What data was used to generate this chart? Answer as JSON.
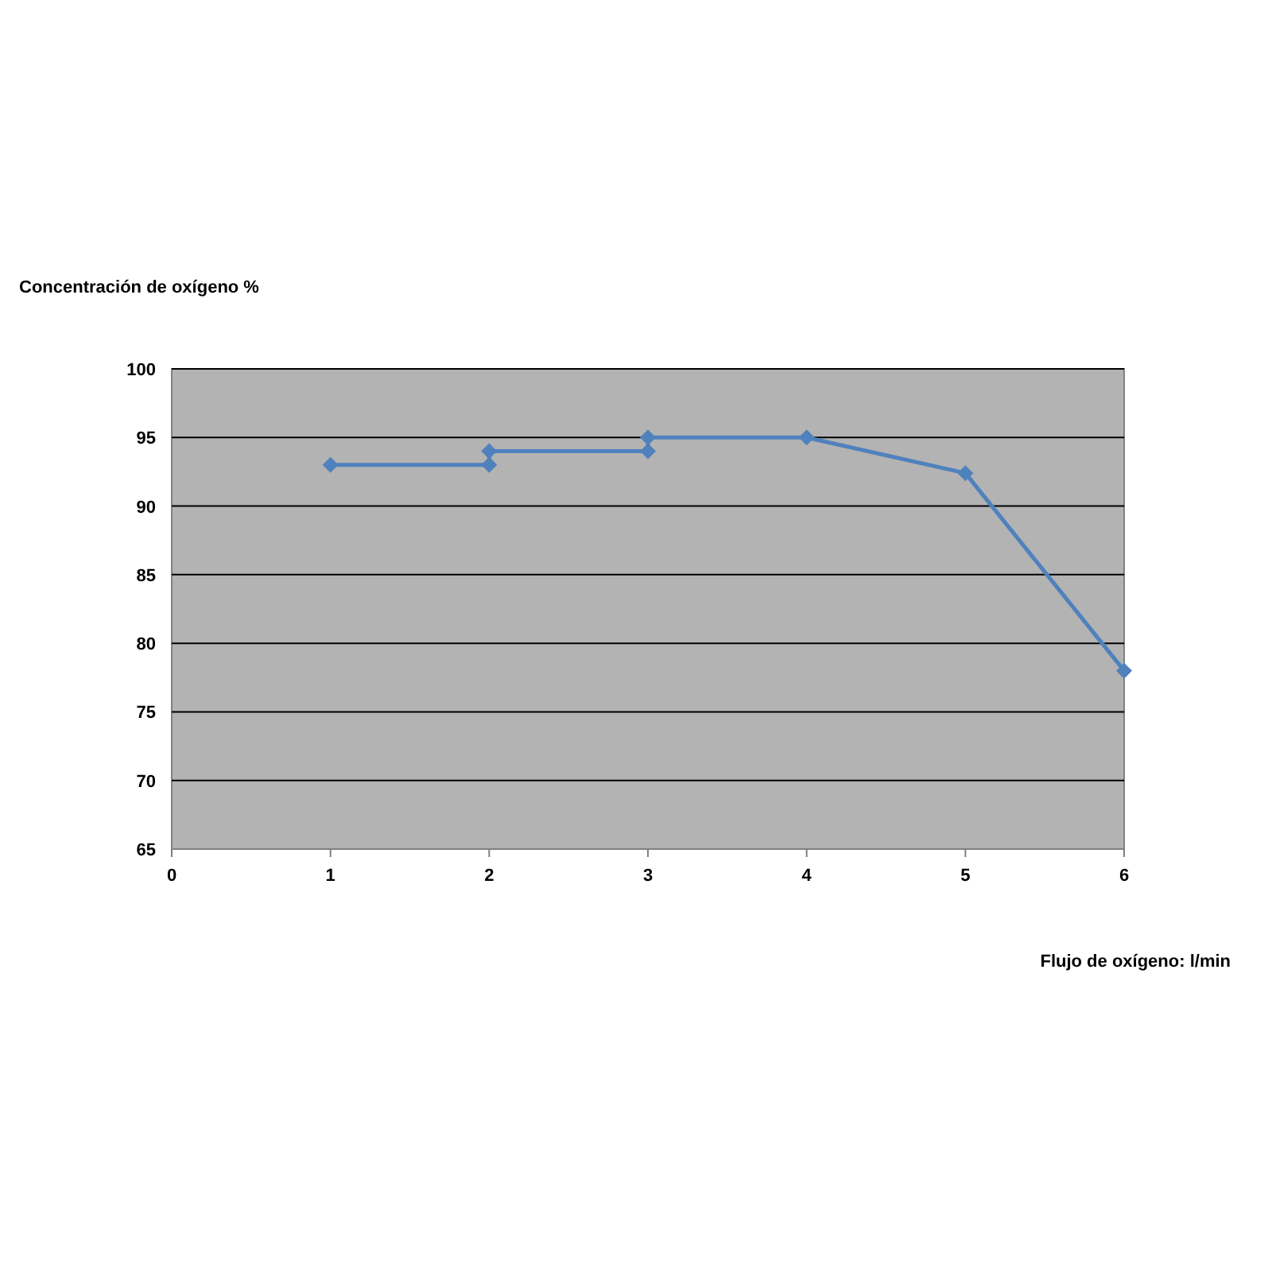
{
  "chart_data": {
    "type": "line",
    "xlabel": "Flujo de oxígeno: l/min",
    "ylabel": "Concentración de oxígeno %",
    "x": [
      1,
      2,
      2,
      3,
      3,
      4,
      5,
      6
    ],
    "series": [
      {
        "color": "#4f81bd",
        "values": [
          93,
          93,
          94,
          94,
          95,
          95,
          92.4,
          78
        ]
      }
    ],
    "xlim": [
      0,
      6
    ],
    "xticks": [
      0,
      1,
      2,
      3,
      4,
      5,
      6
    ],
    "ylim": [
      65,
      100
    ],
    "yticks": [
      65,
      70,
      75,
      80,
      85,
      90,
      95,
      100
    ],
    "grid": "y",
    "marker": "diamond",
    "line_style": "solid"
  }
}
